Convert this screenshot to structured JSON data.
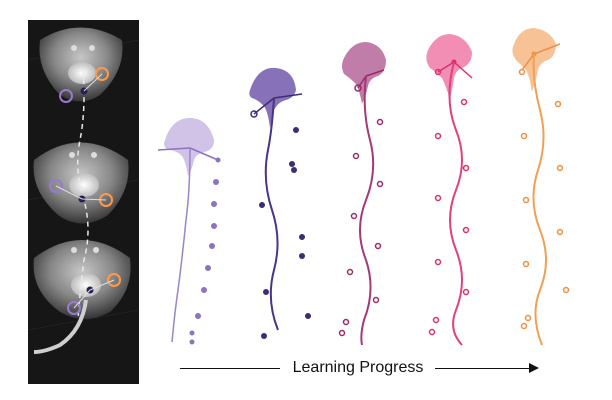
{
  "caption": {
    "text": "Learning Progress"
  },
  "colors": {
    "stages": [
      "#b9a6d6",
      "#6c56a0",
      "#b04a86",
      "#e8508d",
      "#f2a25e"
    ],
    "stage_dots": [
      "#8c72c0",
      "#3f2b78",
      "#9b2a6a",
      "#d9306f",
      "#ee9046"
    ],
    "photo_marker_orange": "#ff9a4a",
    "photo_marker_purple": "#9a7ad0",
    "photo_marker_dark": "#2a1e55",
    "arrow": "#111111"
  },
  "photo_panel": {
    "description_icon": "stingray-photo-icon",
    "frames": 3
  },
  "stages": [
    {
      "name": "stage-1",
      "style": "filled-dots"
    },
    {
      "name": "stage-2",
      "style": "filled-dots"
    },
    {
      "name": "stage-3",
      "style": "ring-dots"
    },
    {
      "name": "stage-4",
      "style": "ring-dots"
    },
    {
      "name": "stage-5",
      "style": "ring-dots"
    }
  ]
}
